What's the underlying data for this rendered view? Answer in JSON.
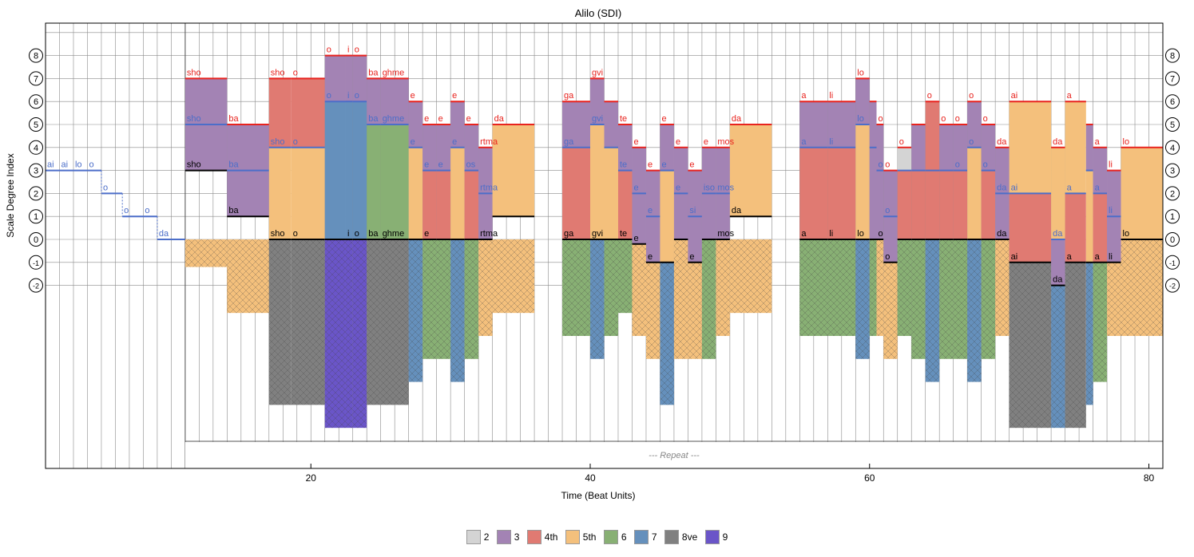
{
  "chart_data": {
    "type": "bar",
    "title": "Alilo (SDI)",
    "xlabel": "Time (Beat Units)",
    "ylabel": "Scale Degree Index",
    "xlim": [
      1,
      81
    ],
    "ylim": [
      -2.5,
      9
    ],
    "x_ticks": [
      "20",
      "40",
      "60",
      "80"
    ],
    "y_ticks": [
      "-2",
      "-1",
      "0",
      "1",
      "2",
      "3",
      "4",
      "5",
      "6",
      "7",
      "8"
    ],
    "repeat_label": "--- Repeat ---",
    "repeat_start": 11,
    "legend": {
      "position": "bottom-center",
      "entries": [
        {
          "label": "2",
          "color": "#d4d4d4"
        },
        {
          "label": "3",
          "color": "#a383b4"
        },
        {
          "label": "4th",
          "color": "#e07a72"
        },
        {
          "label": "5th",
          "color": "#f4c07c"
        },
        {
          "label": "6",
          "color": "#88b074"
        },
        {
          "label": "7",
          "color": "#6590bc"
        },
        {
          "label": "8ve",
          "color": "#808080"
        },
        {
          "label": "9",
          "color": "#6a55c8"
        }
      ]
    },
    "intro_melody": {
      "color": "#4c6ec9",
      "notes": [
        {
          "x0": 1,
          "x1": 4,
          "y": 3,
          "syllables": [
            "ai",
            "ai",
            "lo"
          ]
        },
        {
          "x0": 4,
          "x1": 5,
          "y": 3,
          "syllables": [
            "o"
          ]
        },
        {
          "x0": 5,
          "x1": 6.5,
          "y": 2,
          "syllables": [
            "o"
          ]
        },
        {
          "x0": 6.5,
          "x1": 8,
          "y": 1,
          "syllables": [
            "o"
          ]
        },
        {
          "x0": 8,
          "x1": 9,
          "y": 1,
          "syllables": [
            "o"
          ]
        },
        {
          "x0": 9,
          "x1": 11,
          "y": 0,
          "syllables": [
            "da"
          ]
        }
      ]
    },
    "chords": [
      {
        "x0": 11,
        "x1": 14,
        "bass": 3,
        "mid": 5,
        "top": 7,
        "lo": -1.2,
        "mid_int": "3",
        "top_int": "3",
        "hatch_int": "5th",
        "top_syl": "sho",
        "mid_syl": "sho",
        "bass_syl": "sho"
      },
      {
        "x0": 14,
        "x1": 17,
        "bass": 1,
        "mid": 3,
        "top": 5,
        "lo": -3.2,
        "mid_int": "3",
        "top_int": "3",
        "hatch_int": "5th",
        "top_syl": "ba",
        "mid_syl": "ba",
        "bass_syl": "ba"
      },
      {
        "x0": 17,
        "x1": 18.6,
        "bass": 0,
        "mid": 4,
        "top": 7,
        "lo": -7.2,
        "mid_int": "5th",
        "top_int": "4th",
        "hatch_int": "8ve",
        "top_syl": "sho",
        "mid_syl": "sho",
        "bass_syl": "sho"
      },
      {
        "x0": 18.6,
        "x1": 21,
        "bass": 0,
        "mid": 4,
        "top": 7,
        "lo": -7.2,
        "mid_int": "5th",
        "top_int": "4th",
        "hatch_int": "8ve",
        "top_syl": "o",
        "mid_syl": "o",
        "bass_syl": "o"
      },
      {
        "x0": 21,
        "x1": 22.5,
        "bass": 0,
        "mid": 6,
        "top": 8,
        "lo": -8.2,
        "mid_int": "7",
        "top_int": "3",
        "hatch_int": "9",
        "top_syl": "o",
        "mid_syl": "o",
        "bass_syl": ""
      },
      {
        "x0": 22.5,
        "x1": 23,
        "bass": 0,
        "mid": 6,
        "top": 8,
        "lo": -8.2,
        "mid_int": "7",
        "top_int": "3",
        "hatch_int": "9",
        "top_syl": "i",
        "mid_syl": "i",
        "bass_syl": "i"
      },
      {
        "x0": 23,
        "x1": 24,
        "bass": 0,
        "mid": 6,
        "top": 8,
        "lo": -8.2,
        "mid_int": "7",
        "top_int": "3",
        "hatch_int": "9",
        "top_syl": "o",
        "mid_syl": "o",
        "bass_syl": "o"
      },
      {
        "x0": 24,
        "x1": 25,
        "bass": 0,
        "mid": 5,
        "top": 7,
        "lo": -7.2,
        "mid_int": "6",
        "top_int": "3",
        "hatch_int": "8ve",
        "top_syl": "ba",
        "mid_syl": "ba",
        "bass_syl": "ba"
      },
      {
        "x0": 25,
        "x1": 27,
        "bass": 0,
        "mid": 5,
        "top": 7,
        "lo": -7.2,
        "mid_int": "6",
        "top_int": "3",
        "hatch_int": "8ve",
        "top_syl": "ghme",
        "mid_syl": "ghme",
        "bass_syl": "ghme"
      },
      {
        "x0": 27,
        "x1": 28,
        "bass": 0,
        "mid": 4,
        "top": 6,
        "lo": -6.2,
        "mid_int": "5th",
        "top_int": "3",
        "hatch_int": "7",
        "top_syl": "e",
        "mid_syl": "e",
        "bass_syl": ""
      },
      {
        "x0": 28,
        "x1": 29,
        "bass": 0,
        "mid": 3,
        "top": 5,
        "lo": -5.2,
        "mid_int": "4th",
        "top_int": "3",
        "hatch_int": "6",
        "top_syl": "e",
        "mid_syl": "e",
        "bass_syl": "e"
      },
      {
        "x0": 29,
        "x1": 30,
        "bass": 0,
        "mid": 3,
        "top": 5,
        "lo": -5.2,
        "mid_int": "4th",
        "top_int": "3",
        "hatch_int": "6",
        "top_syl": "e",
        "mid_syl": "e",
        "bass_syl": ""
      },
      {
        "x0": 30,
        "x1": 31,
        "bass": 0,
        "mid": 4,
        "top": 6,
        "lo": -6.2,
        "mid_int": "5th",
        "top_int": "3",
        "hatch_int": "7",
        "top_syl": "e",
        "mid_syl": "e",
        "bass_syl": ""
      },
      {
        "x0": 31,
        "x1": 32,
        "bass": 0,
        "mid": 3,
        "top": 5,
        "lo": -5.2,
        "mid_int": "4th",
        "top_int": "3",
        "hatch_int": "6",
        "top_syl": "e",
        "mid_syl": "os",
        "bass_syl": ""
      },
      {
        "x0": 32,
        "x1": 33,
        "bass": 0,
        "mid": 2,
        "top": 4,
        "lo": -4.2,
        "mid_int": "3",
        "top_int": "3",
        "hatch_int": "5th",
        "top_syl": "rtma",
        "mid_syl": "rtma",
        "bass_syl": "rtma"
      },
      {
        "x0": 33,
        "x1": 36,
        "bass": 1,
        "mid": 1,
        "top": 5,
        "lo": -3.2,
        "mid_int": "5th",
        "top_int": "5th",
        "hatch_int": "5th",
        "top_syl": "da",
        "mid_syl": "da",
        "bass_syl": ""
      },
      {
        "x0": 38,
        "x1": 40,
        "bass": 0,
        "mid": 4,
        "top": 6,
        "lo": -4.2,
        "mid_int": "4th",
        "top_int": "3",
        "hatch_int": "6",
        "top_syl": "ga",
        "mid_syl": "ga",
        "bass_syl": "ga"
      },
      {
        "x0": 40,
        "x1": 41,
        "bass": 0,
        "mid": 5,
        "top": 7,
        "lo": -5.2,
        "mid_int": "5th",
        "top_int": "3",
        "hatch_int": "7",
        "top_syl": "gvi",
        "mid_syl": "gvi",
        "bass_syl": "gvi"
      },
      {
        "x0": 41,
        "x1": 42,
        "bass": 0,
        "mid": 4,
        "top": 6,
        "lo": -4.2,
        "mid_int": "5th",
        "top_int": "3",
        "hatch_int": "6",
        "top_syl": "",
        "mid_syl": "",
        "bass_syl": ""
      },
      {
        "x0": 42,
        "x1": 43,
        "bass": 0,
        "mid": 3,
        "top": 5,
        "lo": -3.2,
        "mid_int": "4th",
        "top_int": "3",
        "hatch_int": "6",
        "top_syl": "te",
        "mid_syl": "te",
        "bass_syl": "te"
      },
      {
        "x0": 43,
        "x1": 44,
        "bass": -0.2,
        "mid": 2,
        "top": 4,
        "lo": -4.2,
        "mid_int": "3",
        "top_int": "3",
        "hatch_int": "5th",
        "top_syl": "e",
        "mid_syl": "e",
        "bass_syl": "e"
      },
      {
        "x0": 44,
        "x1": 45,
        "bass": -1,
        "mid": 1,
        "top": 3,
        "lo": -5.2,
        "mid_int": "3",
        "top_int": "3",
        "hatch_int": "5th",
        "top_syl": "e",
        "mid_syl": "e",
        "bass_syl": "e"
      },
      {
        "x0": 45,
        "x1": 46,
        "bass": -1,
        "mid": 3,
        "top": 5,
        "lo": -7.2,
        "mid_int": "5th",
        "top_int": "3",
        "hatch_int": "7",
        "top_syl": "e",
        "mid_syl": "e",
        "bass_syl": ""
      },
      {
        "x0": 46,
        "x1": 47,
        "bass": 0,
        "mid": 2,
        "top": 4,
        "lo": -5.2,
        "mid_int": "3",
        "top_int": "3",
        "hatch_int": "5th",
        "top_syl": "e",
        "mid_syl": "e",
        "bass_syl": ""
      },
      {
        "x0": 47,
        "x1": 48,
        "bass": -1,
        "mid": 1,
        "top": 3,
        "lo": -5.2,
        "mid_int": "3",
        "top_int": "3",
        "hatch_int": "5th",
        "top_syl": "e",
        "mid_syl": "si",
        "bass_syl": "e"
      },
      {
        "x0": 48,
        "x1": 49,
        "bass": 0,
        "mid": 2,
        "top": 4,
        "lo": -5.2,
        "mid_int": "3",
        "top_int": "3",
        "hatch_int": "6",
        "top_syl": "e",
        "mid_syl": "iso",
        "bass_syl": ""
      },
      {
        "x0": 49,
        "x1": 50,
        "bass": 0,
        "mid": 2,
        "top": 4,
        "lo": -4.2,
        "mid_int": "3",
        "top_int": "3",
        "hatch_int": "5th",
        "top_syl": "mos",
        "mid_syl": "mos",
        "bass_syl": "mos"
      },
      {
        "x0": 50,
        "x1": 53,
        "bass": 1,
        "mid": 1,
        "top": 5,
        "lo": -3.2,
        "mid_int": "5th",
        "top_int": "5th",
        "hatch_int": "5th",
        "top_syl": "da",
        "mid_syl": "da",
        "bass_syl": "da"
      },
      {
        "x0": 55,
        "x1": 57,
        "bass": 0,
        "mid": 4,
        "top": 6,
        "lo": -4.2,
        "mid_int": "4th",
        "top_int": "3",
        "hatch_int": "6",
        "top_syl": "a",
        "mid_syl": "a",
        "bass_syl": "a"
      },
      {
        "x0": 57,
        "x1": 59,
        "bass": 0,
        "mid": 4,
        "top": 6,
        "lo": -4.2,
        "mid_int": "4th",
        "top_int": "3",
        "hatch_int": "6",
        "top_syl": "li",
        "mid_syl": "li",
        "bass_syl": "li"
      },
      {
        "x0": 59,
        "x1": 60,
        "bass": 0,
        "mid": 5,
        "top": 7,
        "lo": -5.2,
        "mid_int": "5th",
        "top_int": "3",
        "hatch_int": "7",
        "top_syl": "lo",
        "mid_syl": "lo",
        "bass_syl": "lo"
      },
      {
        "x0": 60,
        "x1": 60.5,
        "bass": 0,
        "mid": 4,
        "top": 6,
        "lo": -4.2,
        "mid_int": "3",
        "top_int": "3",
        "hatch_int": "6",
        "top_syl": "",
        "mid_syl": "",
        "bass_syl": ""
      },
      {
        "x0": 60.5,
        "x1": 61,
        "bass": 0,
        "mid": 3,
        "top": 5,
        "lo": -4.2,
        "mid_int": "3",
        "top_int": "3",
        "hatch_int": "5th",
        "top_syl": "o",
        "mid_syl": "o",
        "bass_syl": "o"
      },
      {
        "x0": 61,
        "x1": 62,
        "bass": -1,
        "mid": 1,
        "top": 3,
        "lo": -5.2,
        "mid_int": "3",
        "top_int": "3",
        "hatch_int": "5th",
        "top_syl": "o",
        "mid_syl": "o",
        "bass_syl": "o"
      },
      {
        "x0": 62,
        "x1": 63,
        "bass": 0,
        "mid": 3,
        "top": 4,
        "lo": -4.2,
        "mid_int": "4th",
        "top_int": "2",
        "hatch_int": "6",
        "top_syl": "o",
        "mid_syl": "",
        "bass_syl": ""
      },
      {
        "x0": 63,
        "x1": 64,
        "bass": 0,
        "mid": 3,
        "top": 5,
        "lo": -5.2,
        "mid_int": "4th",
        "top_int": "3",
        "hatch_int": "6",
        "top_syl": "",
        "mid_syl": "",
        "bass_syl": ""
      },
      {
        "x0": 64,
        "x1": 65,
        "bass": 0,
        "mid": 3,
        "top": 6,
        "lo": -6.2,
        "mid_int": "4th",
        "top_int": "4th",
        "hatch_int": "7",
        "top_syl": "o",
        "mid_syl": "",
        "bass_syl": ""
      },
      {
        "x0": 65,
        "x1": 66,
        "bass": 0,
        "mid": 3,
        "top": 5,
        "lo": -5.2,
        "mid_int": "4th",
        "top_int": "3",
        "hatch_int": "6",
        "top_syl": "o",
        "mid_syl": "",
        "bass_syl": ""
      },
      {
        "x0": 66,
        "x1": 67,
        "bass": 0,
        "mid": 3,
        "top": 5,
        "lo": -5.2,
        "mid_int": "4th",
        "top_int": "3",
        "hatch_int": "6",
        "top_syl": "o",
        "mid_syl": "o",
        "bass_syl": ""
      },
      {
        "x0": 67,
        "x1": 68,
        "bass": 0,
        "mid": 4,
        "top": 6,
        "lo": -6.2,
        "mid_int": "5th",
        "top_int": "3",
        "hatch_int": "7",
        "top_syl": "o",
        "mid_syl": "o",
        "bass_syl": ""
      },
      {
        "x0": 68,
        "x1": 69,
        "bass": 0,
        "mid": 3,
        "top": 5,
        "lo": -5.2,
        "mid_int": "4th",
        "top_int": "3",
        "hatch_int": "6",
        "top_syl": "o",
        "mid_syl": "o",
        "bass_syl": ""
      },
      {
        "x0": 69,
        "x1": 70,
        "bass": 0,
        "mid": 2,
        "top": 4,
        "lo": -4.2,
        "mid_int": "3",
        "top_int": "3",
        "hatch_int": "5th",
        "top_syl": "da",
        "mid_syl": "da",
        "bass_syl": "da"
      },
      {
        "x0": 70,
        "x1": 73,
        "bass": -1,
        "mid": 2,
        "top": 6,
        "lo": -8.2,
        "mid_int": "4th",
        "top_int": "5th",
        "hatch_int": "8ve",
        "top_syl": "ai",
        "mid_syl": "ai",
        "bass_syl": "ai"
      },
      {
        "x0": 73,
        "x1": 74,
        "bass": -2,
        "mid": 0,
        "top": 4,
        "lo": -8.2,
        "mid_int": "3",
        "top_int": "5th",
        "hatch_int": "7",
        "top_syl": "da",
        "mid_syl": "da",
        "bass_syl": "da"
      },
      {
        "x0": 74,
        "x1": 75.5,
        "bass": -1,
        "mid": 2,
        "top": 6,
        "lo": -8.2,
        "mid_int": "4th",
        "top_int": "5th",
        "hatch_int": "8ve",
        "top_syl": "a",
        "mid_syl": "a",
        "bass_syl": "a"
      },
      {
        "x0": 75.5,
        "x1": 76,
        "bass": -1,
        "mid": 3,
        "top": 5,
        "lo": -7.2,
        "mid_int": "5th",
        "top_int": "3",
        "hatch_int": "7",
        "top_syl": "",
        "mid_syl": "",
        "bass_syl": ""
      },
      {
        "x0": 76,
        "x1": 77,
        "bass": -1,
        "mid": 2,
        "top": 4,
        "lo": -6.2,
        "mid_int": "4th",
        "top_int": "3",
        "hatch_int": "6",
        "top_syl": "a",
        "mid_syl": "a",
        "bass_syl": "a"
      },
      {
        "x0": 77,
        "x1": 78,
        "bass": -1,
        "mid": 1,
        "top": 3,
        "lo": -4.2,
        "mid_int": "3",
        "top_int": "3",
        "hatch_int": "5th",
        "top_syl": "li",
        "mid_syl": "li",
        "bass_syl": "li"
      },
      {
        "x0": 78,
        "x1": 81,
        "bass": 0,
        "mid": 0,
        "top": 4,
        "lo": -4.2,
        "mid_int": "5th",
        "top_int": "5th",
        "hatch_int": "5th",
        "top_syl": "lo",
        "mid_syl": "lo",
        "bass_syl": "lo"
      }
    ]
  }
}
